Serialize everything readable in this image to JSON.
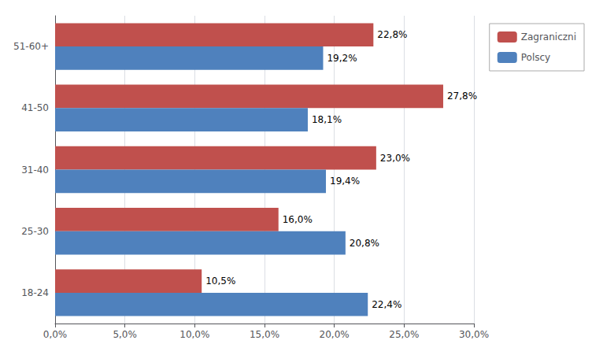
{
  "chart_data": {
    "type": "bar",
    "orientation": "horizontal",
    "categories": [
      "18-24",
      "25-30",
      "31-40",
      "41-50",
      "51-60+"
    ],
    "series": [
      {
        "name": "Zagraniczni",
        "color": "#C0504D",
        "values": [
          0.105,
          0.16,
          0.23,
          0.278,
          0.228
        ],
        "value_labels": [
          "10,5%",
          "16,0%",
          "23,0%",
          "27,8%",
          "22,8%"
        ]
      },
      {
        "name": "Polscy",
        "color": "#4F81BD",
        "values": [
          0.224,
          0.208,
          0.194,
          0.181,
          0.192
        ],
        "value_labels": [
          "22,4%",
          "20,8%",
          "19,4%",
          "18,1%",
          "19,2%"
        ]
      }
    ],
    "xlim": [
      0,
      0.3
    ],
    "xticks": [
      {
        "value": 0.0,
        "label": "0,0%"
      },
      {
        "value": 0.05,
        "label": "5,0%"
      },
      {
        "value": 0.1,
        "label": "10,0%"
      },
      {
        "value": 0.15,
        "label": "15,0%"
      },
      {
        "value": 0.2,
        "label": "20,0%"
      },
      {
        "value": 0.25,
        "label": "25,0%"
      },
      {
        "value": 0.3,
        "label": "30,0%"
      }
    ],
    "grid": true,
    "legend": "right",
    "data_labels": true
  }
}
